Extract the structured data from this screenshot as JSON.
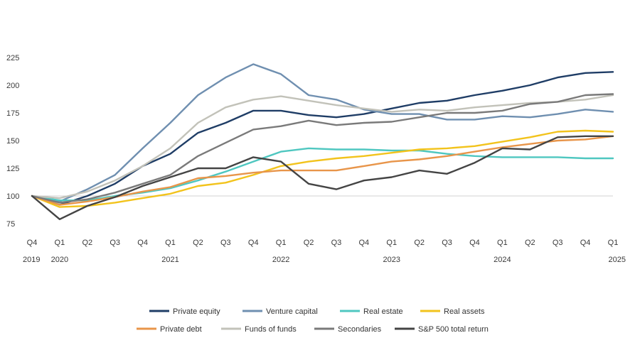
{
  "chart_data": {
    "type": "line",
    "title": "",
    "xlabel": "",
    "ylabel": "",
    "ylim": [
      75,
      225
    ],
    "yticks": [
      75,
      100,
      125,
      150,
      175,
      200,
      225
    ],
    "grid": false,
    "baseline": 100,
    "legend_position": "bottom-center",
    "x": [
      "Q4",
      "Q1",
      "Q2",
      "Q3",
      "Q4",
      "Q1",
      "Q2",
      "Q3",
      "Q4",
      "Q1",
      "Q2",
      "Q3",
      "Q4",
      "Q1",
      "Q2",
      "Q3",
      "Q4",
      "Q1",
      "Q2",
      "Q3",
      "Q4",
      "Q1"
    ],
    "years": [
      {
        "label": "2019",
        "index": 0
      },
      {
        "label": "2020",
        "index": 1
      },
      {
        "label": "2021",
        "index": 5
      },
      {
        "label": "2022",
        "index": 9
      },
      {
        "label": "2023",
        "index": 13
      },
      {
        "label": "2024",
        "index": 17
      },
      {
        "label": "2025",
        "index": 21
      }
    ],
    "series": [
      {
        "name": "Private equity",
        "color": "#1f3d66",
        "values": [
          100,
          92,
          100,
          111,
          127,
          138,
          157,
          166,
          177,
          177,
          173,
          171,
          174,
          179,
          184,
          186,
          191,
          195,
          200,
          207,
          211,
          212
        ]
      },
      {
        "name": "Venture capital",
        "color": "#6f8fb0",
        "values": [
          100,
          95,
          106,
          119,
          143,
          166,
          191,
          207,
          219,
          210,
          191,
          187,
          178,
          174,
          174,
          169,
          169,
          172,
          171,
          174,
          178,
          176
        ]
      },
      {
        "name": "Real estate",
        "color": "#4fc7c0",
        "values": [
          100,
          96,
          96,
          100,
          103,
          107,
          114,
          122,
          131,
          140,
          143,
          142,
          142,
          141,
          141,
          138,
          136,
          135,
          135,
          135,
          134,
          134
        ]
      },
      {
        "name": "Real assets",
        "color": "#f2c31c",
        "values": [
          100,
          90,
          91,
          94,
          98,
          102,
          109,
          112,
          119,
          127,
          131,
          134,
          136,
          139,
          142,
          143,
          145,
          149,
          153,
          158,
          159,
          158
        ]
      },
      {
        "name": "Private debt",
        "color": "#e8954a",
        "values": [
          100,
          92,
          95,
          99,
          104,
          108,
          116,
          118,
          121,
          123,
          123,
          123,
          127,
          131,
          133,
          136,
          140,
          144,
          147,
          150,
          151,
          154
        ]
      },
      {
        "name": "Funds of funds",
        "color": "#c2c2b9",
        "values": [
          100,
          98,
          104,
          114,
          127,
          143,
          166,
          180,
          187,
          190,
          186,
          182,
          179,
          176,
          178,
          177,
          180,
          182,
          184,
          185,
          187,
          191
        ]
      },
      {
        "name": "Secondaries",
        "color": "#7a7a7a",
        "values": [
          100,
          94,
          97,
          103,
          111,
          119,
          136,
          148,
          160,
          163,
          168,
          164,
          166,
          167,
          171,
          175,
          175,
          177,
          183,
          185,
          191,
          192
        ]
      },
      {
        "name": "S&P 500 total return",
        "color": "#444444",
        "values": [
          100,
          79,
          91,
          99,
          109,
          117,
          125,
          125,
          135,
          131,
          111,
          106,
          114,
          117,
          123,
          120,
          130,
          143,
          142,
          153,
          154,
          154
        ]
      }
    ]
  }
}
